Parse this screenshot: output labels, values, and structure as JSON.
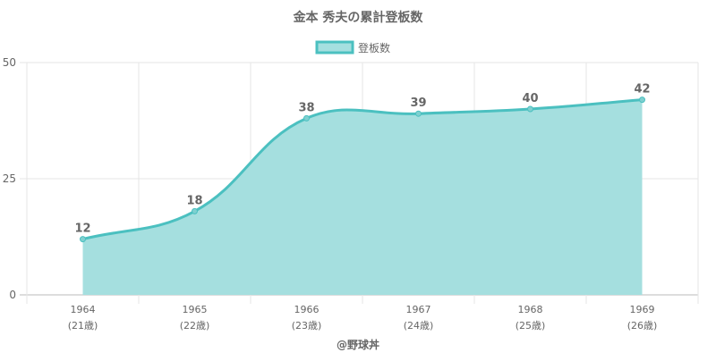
{
  "chart_data": {
    "type": "area",
    "title": "金本 秀夫の累計登板数",
    "categories": [
      "1964",
      "1965",
      "1966",
      "1967",
      "1968",
      "1969"
    ],
    "category_sublabels": [
      "(21歳)",
      "(22歳)",
      "(23歳)",
      "(24歳)",
      "(25歳)",
      "(26歳)"
    ],
    "series": [
      {
        "name": "登板数",
        "values": [
          12,
          18,
          38,
          39,
          40,
          42
        ]
      }
    ],
    "ylim": [
      0,
      50
    ],
    "yticks": [
      0,
      25,
      50
    ],
    "grid": true,
    "legend": "top",
    "data_labels": true,
    "colors": {
      "line": "#4bc0c0",
      "fill": "#a5dfdf",
      "grid": "#e6e6e6",
      "text": "#666666"
    }
  },
  "credit": "@野球丼"
}
